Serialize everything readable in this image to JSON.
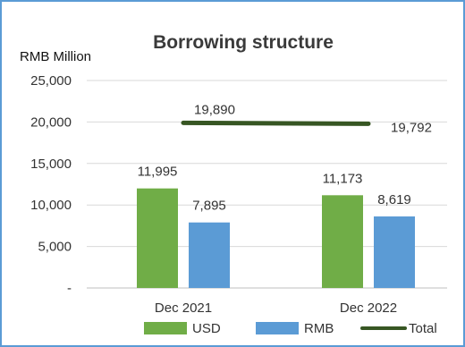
{
  "chart_data": {
    "type": "bar",
    "title": "Borrowing structure",
    "unit_label": "RMB Million",
    "categories": [
      "Dec 2021",
      "Dec 2022"
    ],
    "series": [
      {
        "name": "USD",
        "type": "bar",
        "color": "#70ad47",
        "values": [
          11995,
          11173
        ],
        "labels": [
          "11,995",
          "11,173"
        ]
      },
      {
        "name": "RMB",
        "type": "bar",
        "color": "#5b9bd5",
        "values": [
          7895,
          8619
        ],
        "labels": [
          "7,895",
          "8,619"
        ]
      },
      {
        "name": "Total",
        "type": "line",
        "color": "#375623",
        "values": [
          19890,
          19792
        ],
        "labels": [
          "19,890",
          "19,792"
        ]
      }
    ],
    "y_ticks": [
      {
        "value": 0,
        "label": "-"
      },
      {
        "value": 5000,
        "label": "5,000"
      },
      {
        "value": 10000,
        "label": "10,000"
      },
      {
        "value": 15000,
        "label": "15,000"
      },
      {
        "value": 20000,
        "label": "20,000"
      },
      {
        "value": 25000,
        "label": "25,000"
      }
    ],
    "ylim": [
      0,
      25000
    ],
    "grid": true,
    "legend_position": "bottom"
  }
}
